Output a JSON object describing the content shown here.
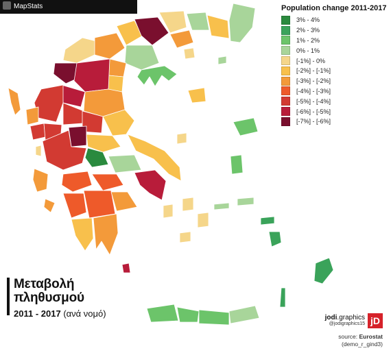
{
  "topbar": {
    "app_name": "MapStats"
  },
  "legend": {
    "title": "Population change 2011-2017",
    "items": [
      {
        "label": "3% - 4%",
        "color": "#2a8a3e"
      },
      {
        "label": "2% - 3%",
        "color": "#3aa35a"
      },
      {
        "label": "1% - 2%",
        "color": "#6cc46a"
      },
      {
        "label": "0% - 1%",
        "color": "#a8d59a"
      },
      {
        "label": "[-1%] - 0%",
        "color": "#f5d68a"
      },
      {
        "label": "[-2%] - [-1%]",
        "color": "#f8c04c"
      },
      {
        "label": "[-3%] - [-2%]",
        "color": "#f39a3a"
      },
      {
        "label": "[-4%] - [-3%]",
        "color": "#ee5a2a"
      },
      {
        "label": "[-5%] - [-4%]",
        "color": "#d23a32"
      },
      {
        "label": "[-6%] - [-5%]",
        "color": "#b81c3a"
      },
      {
        "label": "[-7%] - [-6%]",
        "color": "#7a0f2e"
      }
    ]
  },
  "title": {
    "line1": "Μεταβολή",
    "line2": "πληθυσμού",
    "years": "2011 - 2017",
    "subtitle_rest": "(ανά νομό)"
  },
  "brand": {
    "name": "jodi",
    "name_suffix": ".graphics",
    "handle": "@jodigraphics15",
    "logo_letters": "jD"
  },
  "source": {
    "prefix": "source:",
    "name": "Eurostat",
    "code": "(demo_r_gind3)"
  }
}
